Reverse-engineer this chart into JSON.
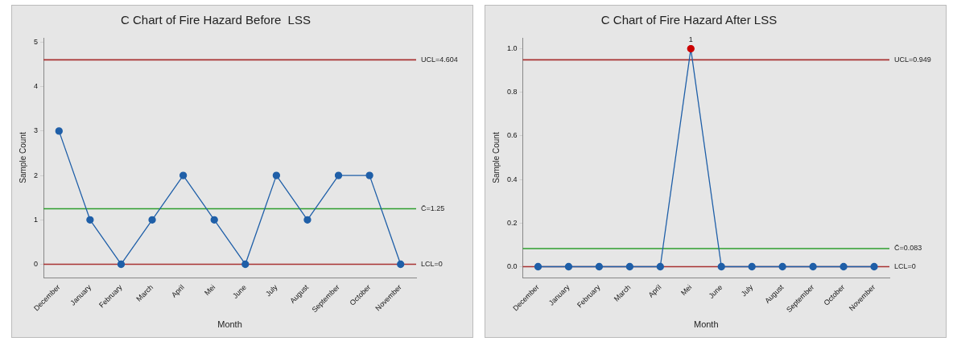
{
  "chart_data": [
    {
      "type": "line",
      "title": "C Chart of Fire Hazard Before  LSS",
      "xlabel": "Month",
      "ylabel": "Sample Count",
      "categories": [
        "December",
        "January",
        "February",
        "March",
        "April",
        "Mei",
        "June",
        "July",
        "August",
        "September",
        "October",
        "November"
      ],
      "series": [
        {
          "color": "#1f5fa8",
          "values": [
            3,
            1,
            0,
            1,
            2,
            1,
            0,
            2,
            1,
            2,
            2,
            0
          ],
          "colors": [
            "#1f5fa8",
            "#1f5fa8",
            "#1f5fa8",
            "#1f5fa8",
            "#1f5fa8",
            "#1f5fa8",
            "#1f5fa8",
            "#1f5fa8",
            "#1f5fa8",
            "#1f5fa8",
            "#1f5fa8",
            "#1f5fa8"
          ]
        }
      ],
      "marker": "circle",
      "ylim": [
        -0.3,
        5.1
      ],
      "yticks": [
        0,
        1,
        2,
        3,
        4,
        5
      ],
      "ref_lines": [
        {
          "axis": "y",
          "value": 4.604,
          "label": "UCL=4.604",
          "color": "#a83232"
        },
        {
          "axis": "y",
          "value": 1.25,
          "label": "C̄=1.25",
          "color": "#2e9e2e"
        },
        {
          "axis": "y",
          "value": 0,
          "label": "LCL=0",
          "color": "#a83232"
        }
      ]
    },
    {
      "type": "line",
      "title": "C Chart of Fire Hazard After LSS",
      "xlabel": "Month",
      "ylabel": "Sample Count",
      "categories": [
        "December",
        "January",
        "February",
        "March",
        "April",
        "Mei",
        "June",
        "July",
        "August",
        "September",
        "October",
        "November"
      ],
      "series": [
        {
          "color": "#1f5fa8",
          "values": [
            0,
            0,
            0,
            0,
            0,
            1,
            0,
            0,
            0,
            0,
            0,
            0
          ],
          "colors": [
            "#1f5fa8",
            "#1f5fa8",
            "#1f5fa8",
            "#1f5fa8",
            "#1f5fa8",
            "#cc0000",
            "#1f5fa8",
            "#1f5fa8",
            "#1f5fa8",
            "#1f5fa8",
            "#1f5fa8",
            "#1f5fa8"
          ]
        }
      ],
      "marker": "circle",
      "ylim": [
        -0.05,
        1.05
      ],
      "yticks": [
        {
          "value": 0,
          "label": "0.0"
        },
        {
          "value": 0.2,
          "label": "0.2"
        },
        {
          "value": 0.4,
          "label": "0.4"
        },
        {
          "value": 0.6,
          "label": "0.6"
        },
        {
          "value": 0.8,
          "label": "0.8"
        },
        {
          "value": 1,
          "label": "1.0"
        }
      ],
      "ref_lines": [
        {
          "axis": "y",
          "value": 0.949,
          "label": "UCL=0.949",
          "color": "#a83232"
        },
        {
          "axis": "y",
          "value": 0.083,
          "label": "C̄=0.083",
          "color": "#2e9e2e"
        },
        {
          "axis": "y",
          "value": 0,
          "label": "LCL=0",
          "color": "#a83232"
        }
      ],
      "annotations": [
        {
          "text": "1",
          "x": "Mei",
          "y": 1
        }
      ]
    }
  ]
}
